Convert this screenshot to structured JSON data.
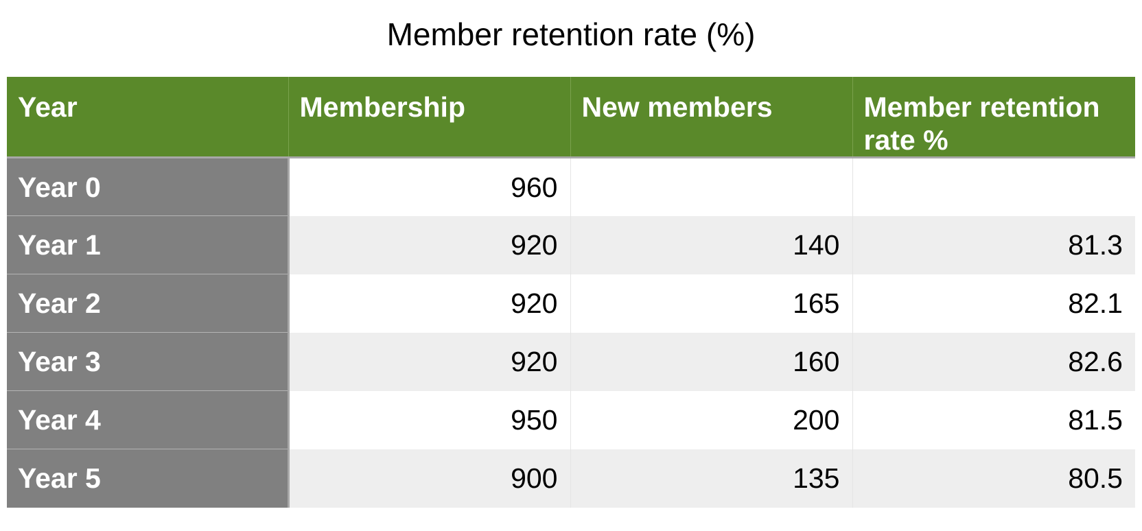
{
  "chart_data": {
    "type": "table",
    "title": "Member retention rate (%)",
    "columns": [
      "Year",
      "Membership",
      "New members",
      "Member retention rate %"
    ],
    "rows": [
      {
        "year": "Year 0",
        "membership": "960",
        "new_members": "",
        "retention_rate": ""
      },
      {
        "year": "Year 1",
        "membership": "920",
        "new_members": "140",
        "retention_rate": "81.3"
      },
      {
        "year": "Year 2",
        "membership": "920",
        "new_members": "165",
        "retention_rate": "82.1"
      },
      {
        "year": "Year 3",
        "membership": "920",
        "new_members": "160",
        "retention_rate": "82.6"
      },
      {
        "year": "Year 4",
        "membership": "950",
        "new_members": "200",
        "retention_rate": "81.5"
      },
      {
        "year": "Year 5",
        "membership": "900",
        "new_members": "135",
        "retention_rate": "80.5"
      }
    ]
  },
  "colors": {
    "header_background": "#5a892a",
    "header_text": "#ffffff",
    "row_header_background": "#808080",
    "row_header_text": "#ffffff",
    "stripe_light": "#ffffff",
    "stripe_dark": "#eeeeee"
  }
}
